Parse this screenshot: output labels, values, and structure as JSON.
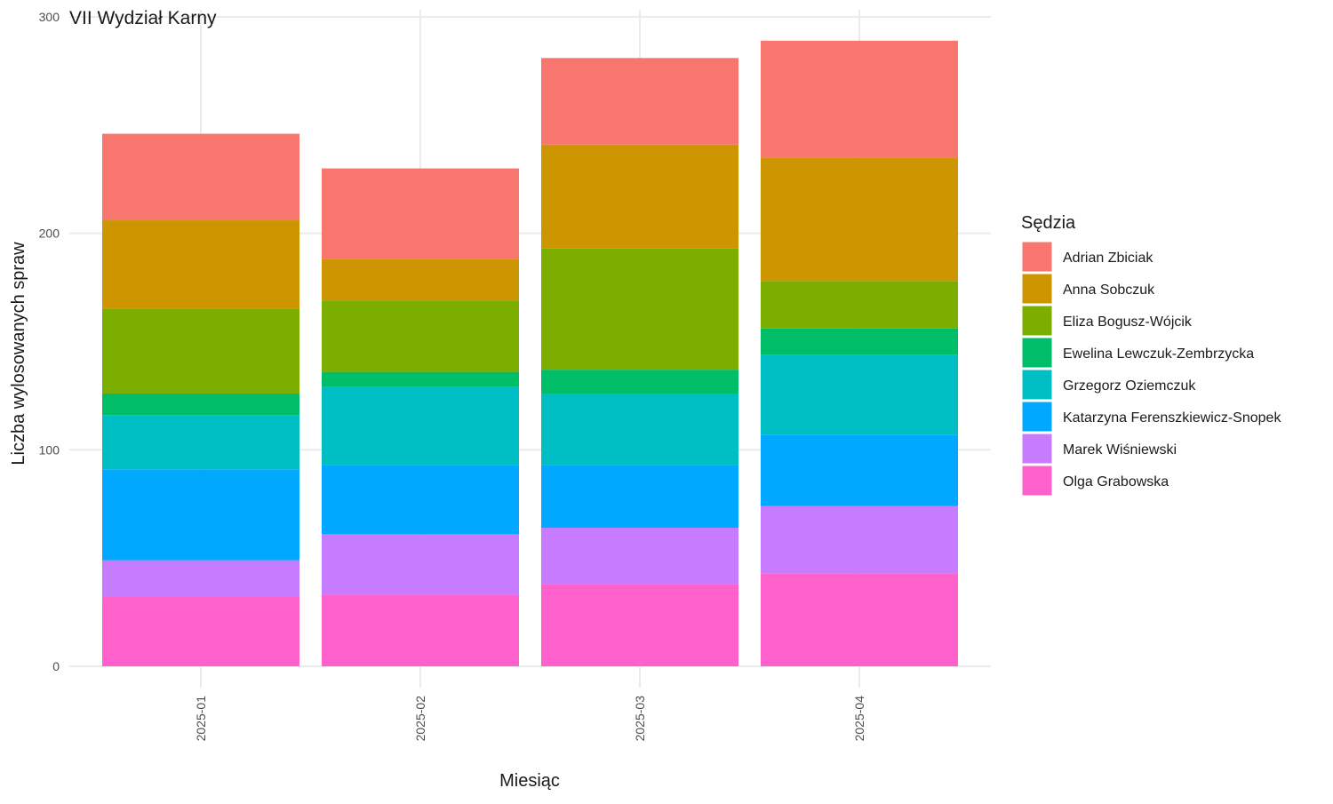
{
  "chart_data": {
    "type": "bar",
    "stacked": true,
    "title": "VII Wydział Karny",
    "xlabel": "Miesiąc",
    "ylabel": "Liczba wylosowanych spraw",
    "ylim": [
      0,
      300
    ],
    "yticks": [
      0,
      100,
      200,
      300
    ],
    "grid": true,
    "legend_position": "right",
    "legend_title": "Sędzia",
    "categories": [
      "2025-01",
      "2025-02",
      "2025-03",
      "2025-04"
    ],
    "series": [
      {
        "name": "Olga Grabowska",
        "color": "#FF61CC",
        "values": [
          32,
          33,
          38,
          43
        ]
      },
      {
        "name": "Marek Wiśniewski",
        "color": "#C77CFF",
        "values": [
          17,
          28,
          26,
          31
        ]
      },
      {
        "name": "Katarzyna Ferenszkiewicz-Snopek",
        "color": "#00A9FF",
        "values": [
          42,
          32,
          29,
          33
        ]
      },
      {
        "name": "Grzegorz Oziemczuk",
        "color": "#00BFC4",
        "values": [
          25,
          36,
          33,
          37
        ]
      },
      {
        "name": "Ewelina Lewczuk-Zembrzycka",
        "color": "#00BE67",
        "values": [
          10,
          7,
          11,
          12
        ]
      },
      {
        "name": "Eliza Bogusz-Wójcik",
        "color": "#7CAE00",
        "values": [
          39,
          33,
          56,
          22
        ]
      },
      {
        "name": "Anna Sobczuk",
        "color": "#CD9600",
        "values": [
          41,
          19,
          48,
          57
        ]
      },
      {
        "name": "Adrian Zbiciak",
        "color": "#F8766D",
        "values": [
          40,
          42,
          40,
          54
        ]
      }
    ],
    "legend_order": [
      "Adrian Zbiciak",
      "Anna Sobczuk",
      "Eliza Bogusz-Wójcik",
      "Ewelina Lewczuk-Zembrzycka",
      "Grzegorz Oziemczuk",
      "Katarzyna Ferenszkiewicz-Snopek",
      "Marek Wiśniewski",
      "Olga Grabowska"
    ]
  }
}
